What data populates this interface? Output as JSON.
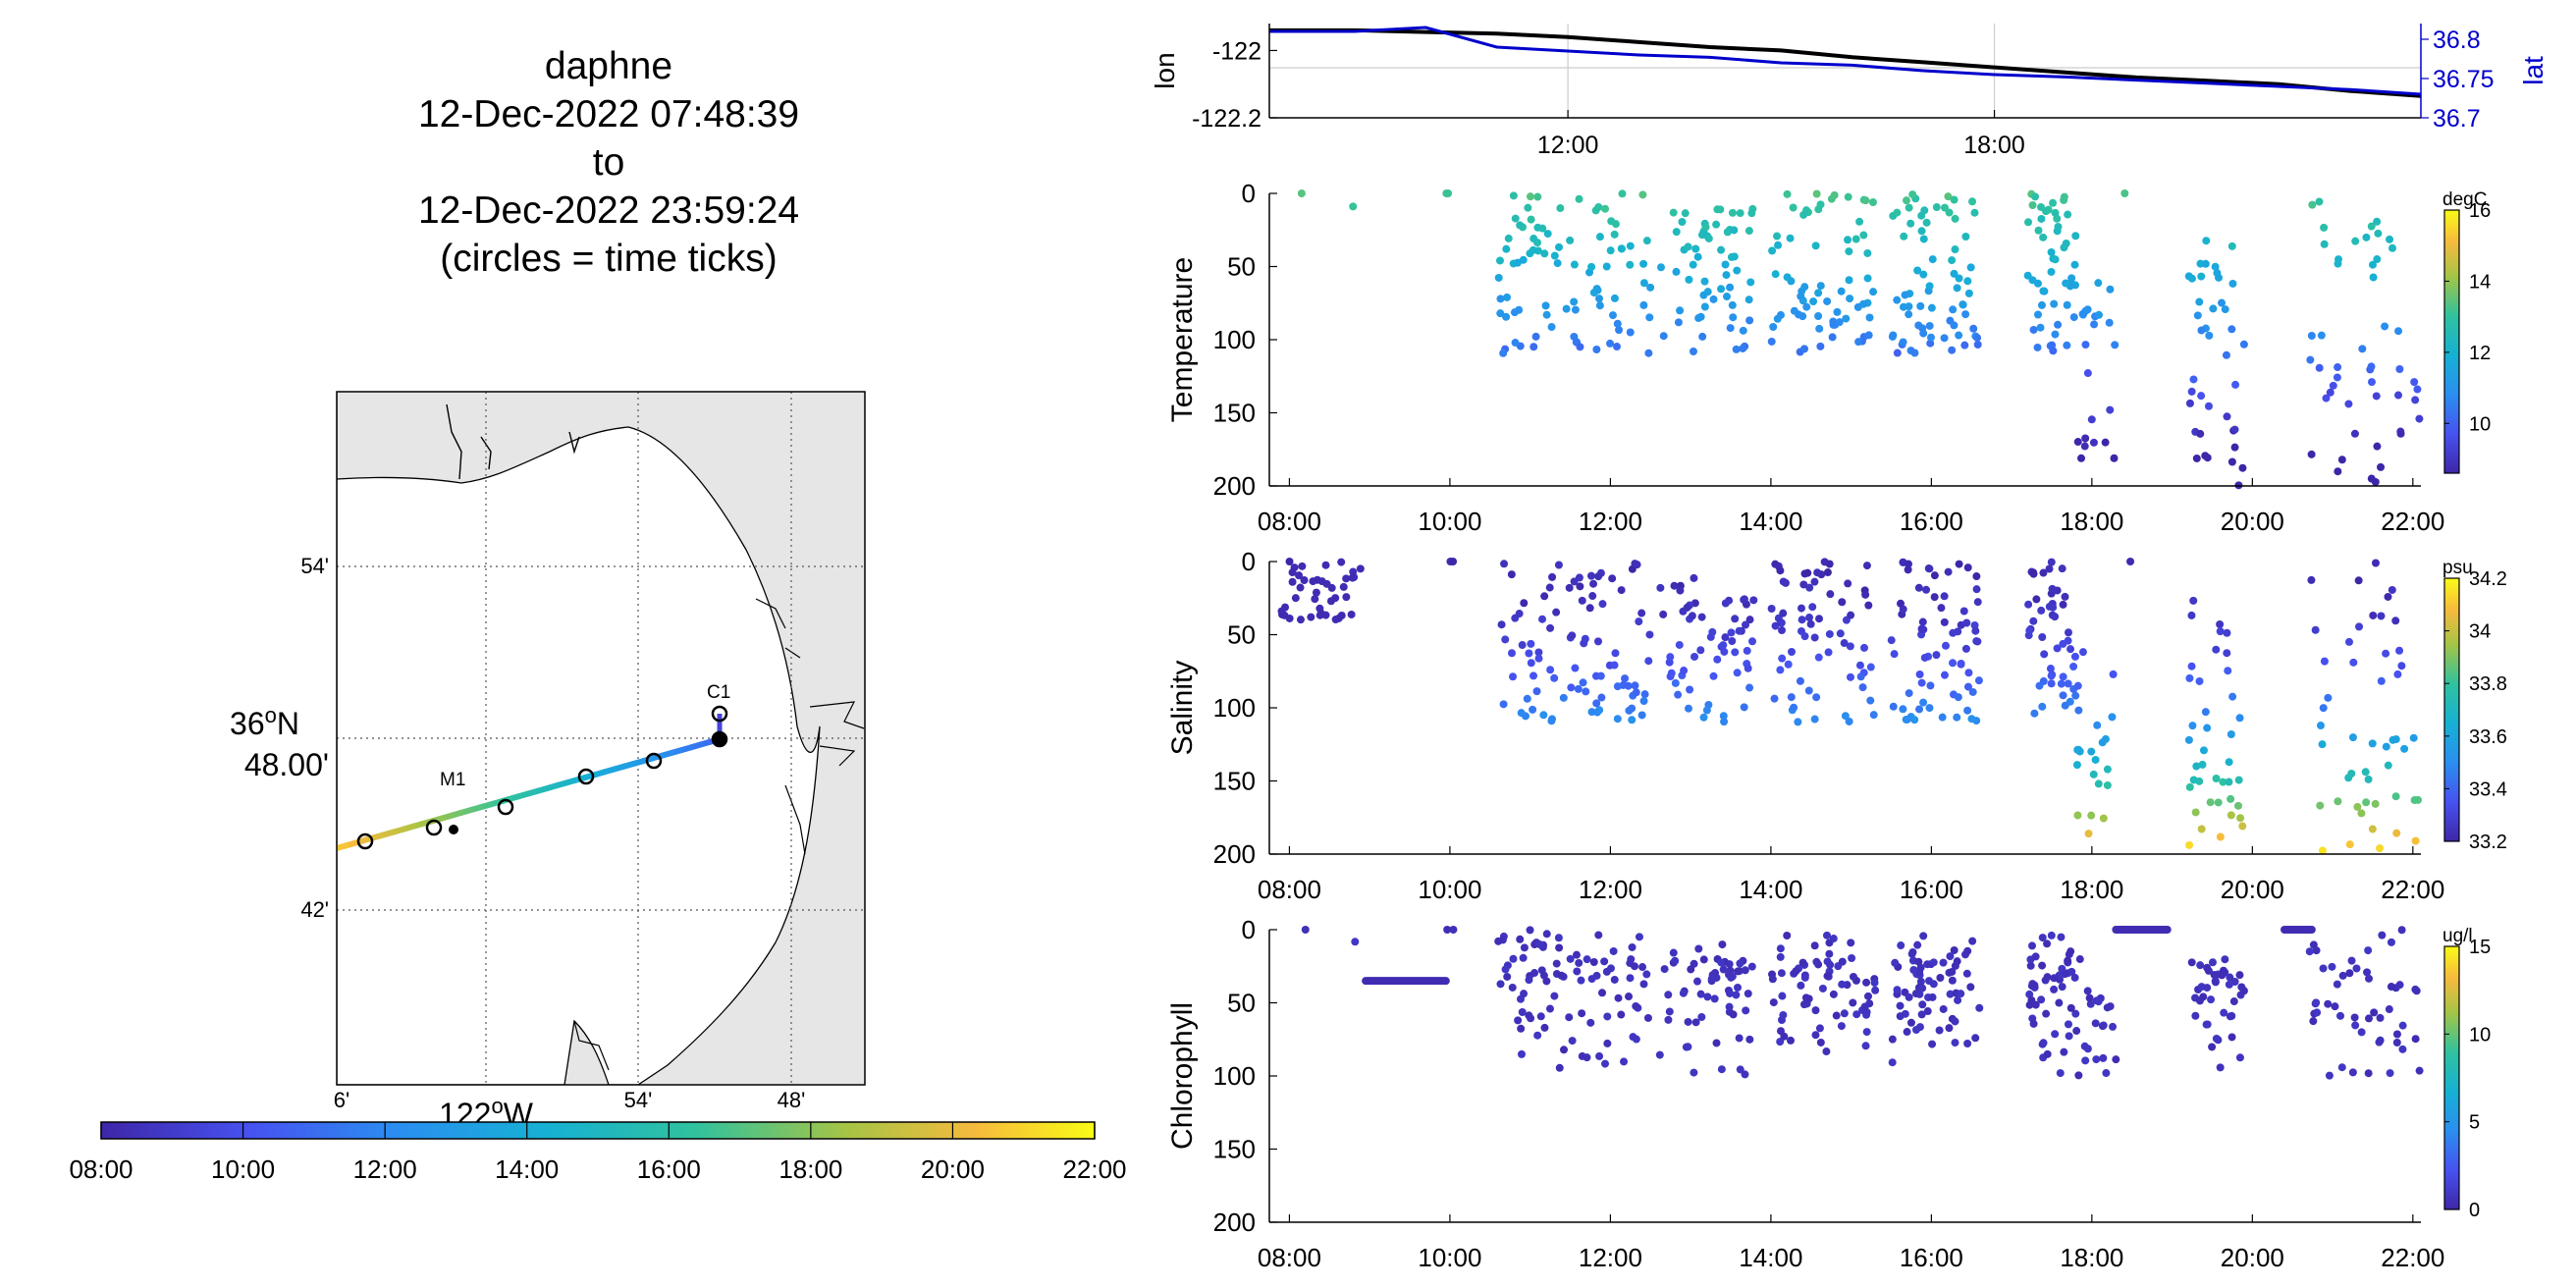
{
  "header": {
    "vehicle": "daphne",
    "start": "12-Dec-2022 07:48:39",
    "to": "to",
    "end": "12-Dec-2022 23:59:24",
    "note": "(circles = time ticks)"
  },
  "map": {
    "lat_ticks": [
      "54'",
      "36°N 48.00'",
      "42'"
    ],
    "lat_deg_label": "36",
    "lat_deg_suffix": "N",
    "lat_min_label": "48.00'",
    "lon_ticks": [
      "6'",
      "54'",
      "48'"
    ],
    "lon_deg_label": "122",
    "lon_deg_suffix": "W",
    "stations": [
      {
        "name": "M1"
      },
      {
        "name": "C1"
      }
    ],
    "land_color": "#e6e6e6",
    "time_colorbar": {
      "ticks": [
        "08:00",
        "10:00",
        "12:00",
        "14:00",
        "16:00",
        "18:00",
        "20:00",
        "22:00"
      ]
    }
  },
  "chart_data": [
    {
      "type": "line",
      "name": "position",
      "ylabel": "lon",
      "y2label": "lat",
      "yticks": [
        "-122",
        "-122.2"
      ],
      "y2ticks": [
        "36.8",
        "36.75",
        "36.7"
      ],
      "xticks": [
        "12:00",
        "18:00"
      ],
      "series": [
        {
          "name": "lon",
          "color": "#000000",
          "x_hours": [
            7.8,
            9,
            10,
            11,
            12,
            13,
            14,
            15,
            16,
            17,
            18,
            19,
            20,
            21,
            22,
            23,
            24
          ],
          "values": [
            -121.94,
            -121.94,
            -121.945,
            -121.95,
            -121.96,
            -121.975,
            -121.99,
            -122.0,
            -122.02,
            -122.035,
            -122.05,
            -122.065,
            -122.08,
            -122.09,
            -122.1,
            -122.12,
            -122.135
          ]
        },
        {
          "name": "lat",
          "color": "#0000cc",
          "x_hours": [
            7.8,
            9,
            10,
            11,
            12,
            13,
            14,
            15,
            16,
            17,
            18,
            19,
            20,
            21,
            22,
            23,
            24
          ],
          "values": [
            36.81,
            36.81,
            36.815,
            36.79,
            36.785,
            36.78,
            36.777,
            36.77,
            36.767,
            36.76,
            36.755,
            36.752,
            36.748,
            36.744,
            36.74,
            36.736,
            36.73
          ]
        }
      ]
    },
    {
      "type": "scatter",
      "name": "temperature",
      "ylabel": "Temperature",
      "units": "degC",
      "ylim": [
        0,
        200
      ],
      "yticks": [
        "0",
        "50",
        "100",
        "150",
        "200"
      ],
      "xticks": [
        "08:00",
        "10:00",
        "12:00",
        "14:00",
        "16:00",
        "18:00",
        "20:00",
        "22:00"
      ],
      "colorbar_ticks": [
        "16",
        "14",
        "12",
        "10"
      ],
      "clim": [
        8.6,
        16
      ]
    },
    {
      "type": "scatter",
      "name": "salinity",
      "ylabel": "Salinity",
      "units": "psu",
      "ylim": [
        0,
        200
      ],
      "yticks": [
        "0",
        "50",
        "100",
        "150",
        "200"
      ],
      "xticks": [
        "08:00",
        "10:00",
        "12:00",
        "14:00",
        "16:00",
        "18:00",
        "20:00",
        "22:00"
      ],
      "colorbar_ticks": [
        "34.2",
        "34",
        "33.8",
        "33.6",
        "33.4",
        "33.2"
      ],
      "clim": [
        33.2,
        34.2
      ]
    },
    {
      "type": "scatter",
      "name": "chlorophyll",
      "ylabel": "Chlorophyll",
      "units": "ug/l",
      "ylim": [
        0,
        200
      ],
      "yticks": [
        "0",
        "50",
        "100",
        "150",
        "200"
      ],
      "xticks": [
        "08:00",
        "10:00",
        "12:00",
        "14:00",
        "16:00",
        "18:00",
        "20:00",
        "22:00"
      ],
      "colorbar_ticks": [
        "15",
        "10",
        "5",
        "0"
      ],
      "clim": [
        0,
        15
      ]
    }
  ]
}
